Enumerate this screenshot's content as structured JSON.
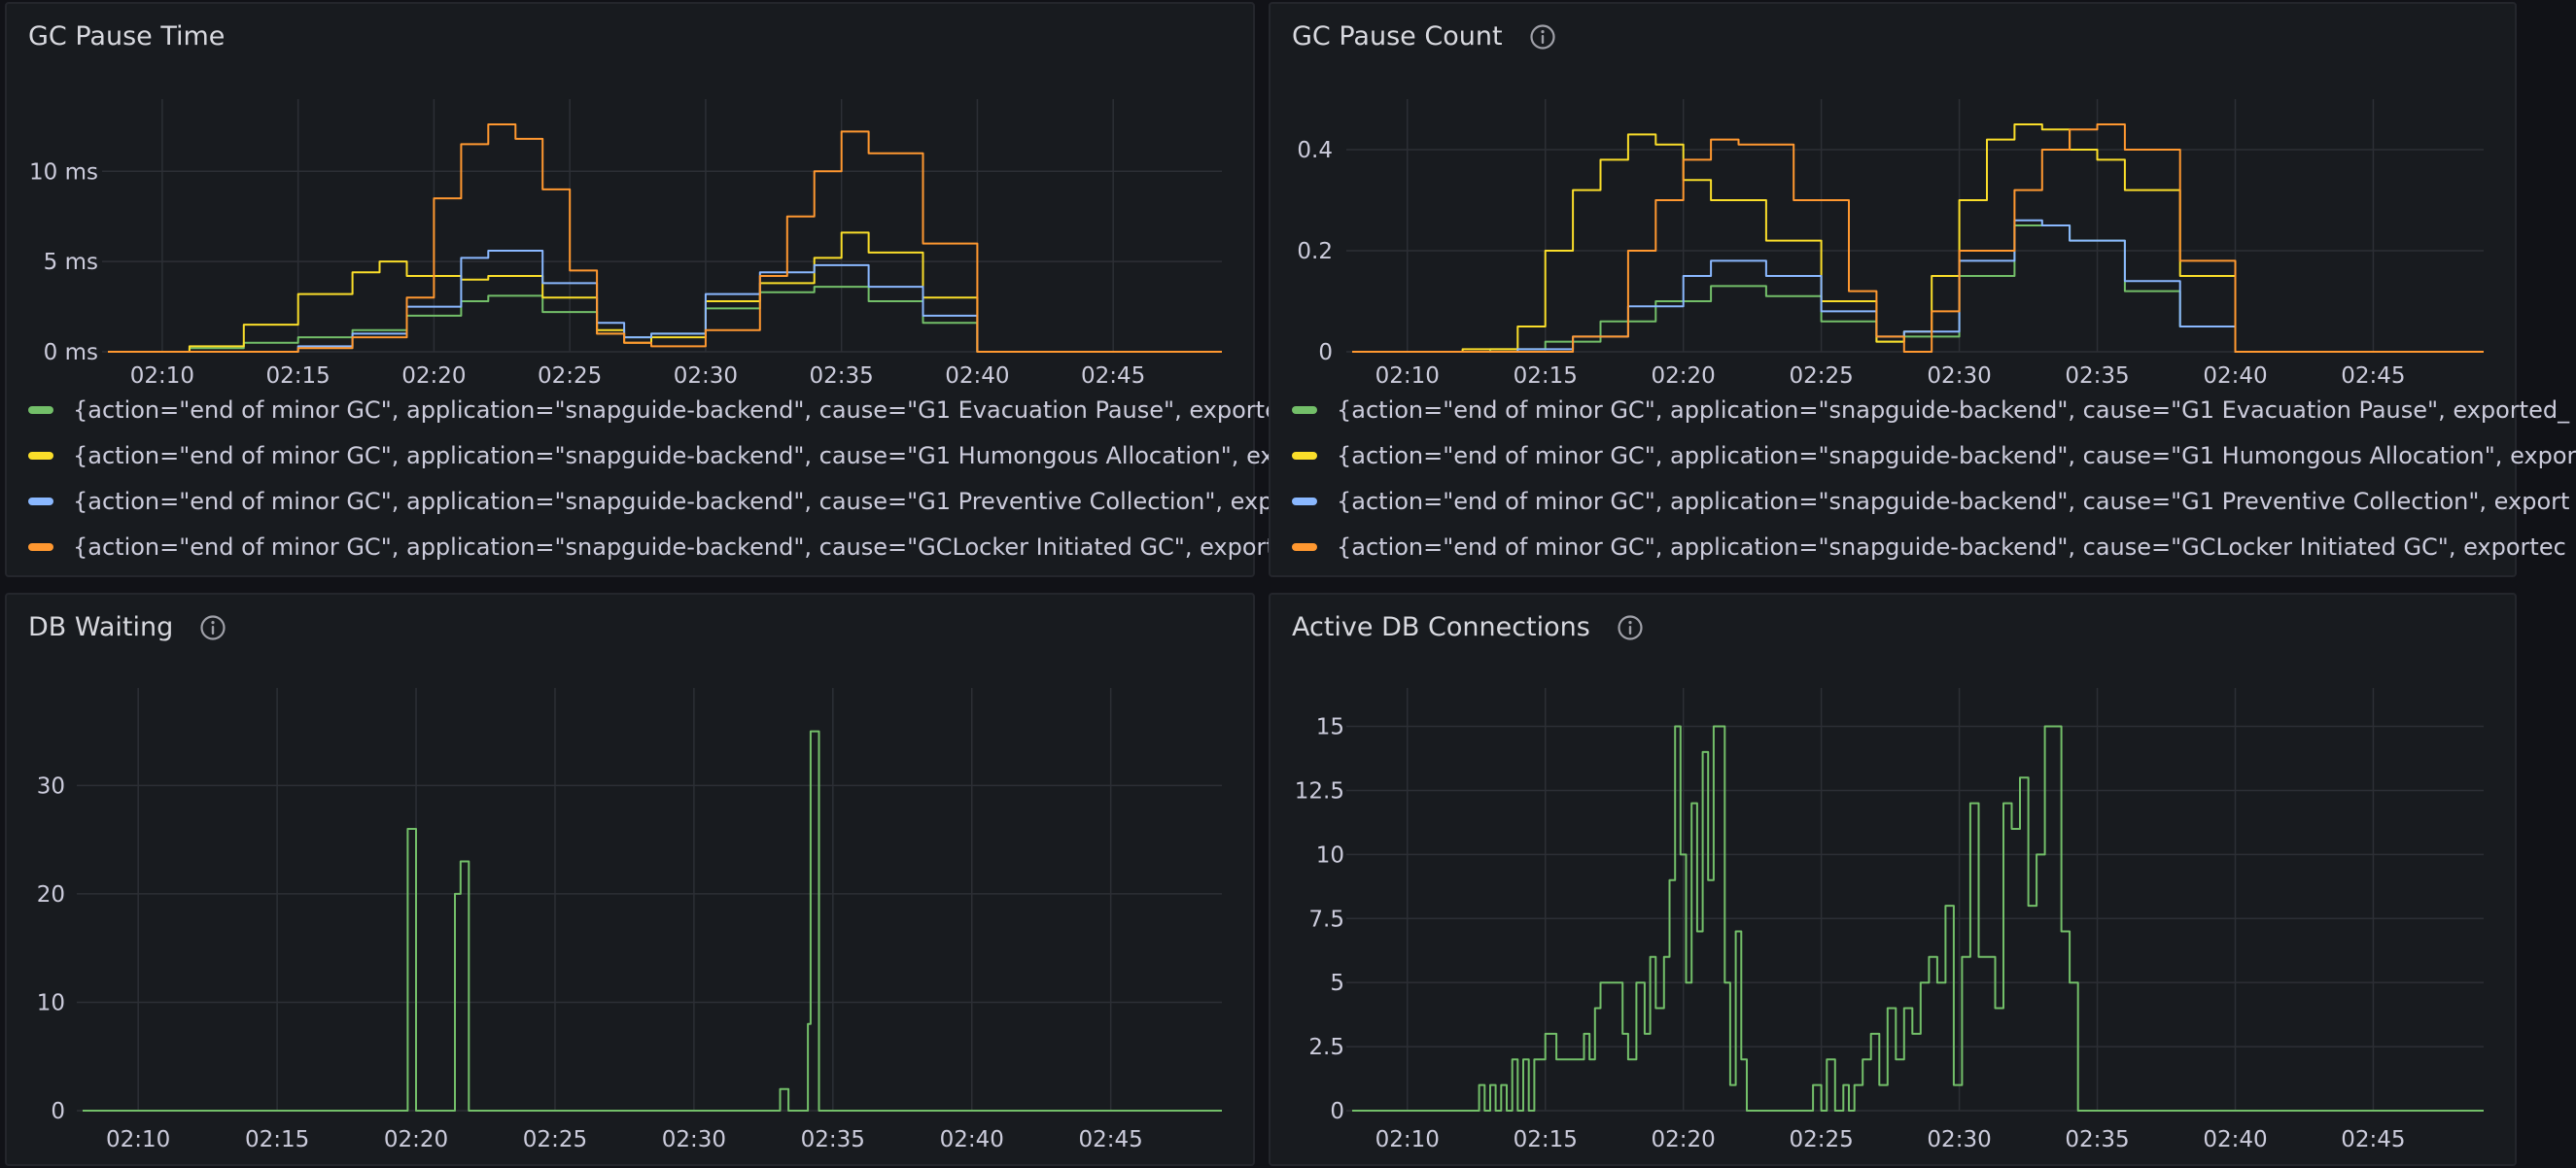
{
  "colors": {
    "background": "#111217",
    "panel": "#181b1f",
    "grid": "#2c2f35",
    "green": "#73bf69",
    "yellow": "#fade2a",
    "blue": "#8ab8ff",
    "orange": "#ff9830"
  },
  "x_tick_labels": [
    "02:10",
    "02:15",
    "02:20",
    "02:25",
    "02:30",
    "02:35",
    "02:40",
    "02:45"
  ],
  "legend": [
    {
      "color": "#73bf69",
      "label": "{action=\"end of minor GC\", application=\"snapguide-backend\", cause=\"G1 Evacuation Pause\", exported_"
    },
    {
      "color": "#fade2a",
      "label": "{action=\"end of minor GC\", application=\"snapguide-backend\", cause=\"G1 Humongous Allocation\", expor"
    },
    {
      "color": "#8ab8ff",
      "label": "{action=\"end of minor GC\", application=\"snapguide-backend\", cause=\"G1 Preventive Collection\", export"
    },
    {
      "color": "#ff9830",
      "label": "{action=\"end of minor GC\", application=\"snapguide-backend\", cause=\"GCLocker Initiated GC\", exportec"
    }
  ],
  "panels": {
    "gc_pause_time": {
      "title": "GC Pause Time"
    },
    "gc_pause_count": {
      "title": "GC Pause Count",
      "icon": "info-icon"
    },
    "db_waiting": {
      "title": "DB Waiting",
      "icon": "info-icon"
    },
    "active_db": {
      "title": "Active DB Connections",
      "icon": "info-icon"
    }
  },
  "chart_data": [
    {
      "type": "line",
      "title": "GC Pause Time",
      "x_range": [
        "02:08",
        "02:49"
      ],
      "y_ticks": [
        {
          "v": 0,
          "label": "0 ms"
        },
        {
          "v": 5,
          "label": "5 ms"
        },
        {
          "v": 10,
          "label": "10 ms"
        }
      ],
      "ylim": [
        0,
        14
      ],
      "grid": true,
      "legend_position": "bottom",
      "series": [
        {
          "color": "#73bf69",
          "x": [
            8,
            11,
            13,
            15,
            17,
            19,
            21,
            22,
            24,
            26,
            27,
            28,
            30,
            32,
            34,
            36,
            38,
            40,
            49
          ],
          "y": [
            0,
            0.2,
            0.5,
            0.8,
            1.2,
            2.0,
            2.8,
            3.1,
            2.2,
            1.0,
            0.8,
            1.0,
            2.4,
            3.3,
            3.6,
            2.8,
            1.6,
            0,
            0
          ]
        },
        {
          "color": "#fade2a",
          "x": [
            8,
            11,
            13,
            15,
            17,
            18,
            19,
            21,
            22,
            24,
            26,
            27,
            28,
            30,
            32,
            34,
            35,
            36,
            38,
            40,
            49
          ],
          "y": [
            0,
            0.3,
            1.5,
            3.2,
            4.4,
            5.0,
            4.2,
            4.0,
            4.2,
            3.0,
            1.2,
            0.5,
            0.8,
            2.8,
            3.8,
            5.2,
            6.6,
            5.5,
            3.0,
            0,
            0
          ]
        },
        {
          "color": "#8ab8ff",
          "x": [
            8,
            14,
            15,
            17,
            19,
            21,
            22,
            24,
            26,
            27,
            28,
            30,
            32,
            34,
            36,
            38,
            40,
            49
          ],
          "y": [
            0,
            0,
            0.3,
            1.0,
            2.5,
            5.2,
            5.6,
            3.8,
            1.6,
            0.8,
            1.0,
            3.2,
            4.4,
            4.8,
            3.6,
            2.0,
            0,
            0
          ]
        },
        {
          "color": "#ff9830",
          "x": [
            8,
            14,
            15,
            17,
            19,
            20,
            21,
            22,
            23,
            24,
            25,
            26,
            27,
            28,
            30,
            32,
            33,
            34,
            35,
            36,
            38,
            40,
            49
          ],
          "y": [
            0,
            0,
            0.2,
            0.8,
            3.0,
            8.5,
            11.5,
            12.6,
            11.8,
            9.0,
            4.5,
            1.0,
            0.5,
            0.3,
            1.2,
            4.2,
            7.5,
            10.0,
            12.2,
            11.0,
            6.0,
            0,
            0
          ]
        }
      ]
    },
    {
      "type": "line",
      "title": "GC Pause Count",
      "x_range": [
        "02:08",
        "02:49"
      ],
      "y_ticks": [
        {
          "v": 0,
          "label": "0"
        },
        {
          "v": 0.2,
          "label": "0.2"
        },
        {
          "v": 0.4,
          "label": "0.4"
        }
      ],
      "ylim": [
        0,
        0.5
      ],
      "grid": true,
      "legend_position": "bottom",
      "series": [
        {
          "color": "#73bf69",
          "x": [
            8,
            13,
            15,
            17,
            19,
            21,
            23,
            25,
            27,
            28,
            30,
            32,
            34,
            36,
            38,
            40,
            49
          ],
          "y": [
            0,
            0.005,
            0.02,
            0.06,
            0.1,
            0.13,
            0.11,
            0.06,
            0.02,
            0.03,
            0.15,
            0.25,
            0.22,
            0.12,
            0.05,
            0,
            0
          ]
        },
        {
          "color": "#fade2a",
          "x": [
            8,
            12,
            14,
            15,
            16,
            17,
            18,
            19,
            20,
            21,
            23,
            25,
            27,
            28,
            29,
            30,
            31,
            32,
            33,
            34,
            35,
            36,
            38,
            40,
            49
          ],
          "y": [
            0,
            0.005,
            0.05,
            0.2,
            0.32,
            0.38,
            0.43,
            0.41,
            0.34,
            0.3,
            0.22,
            0.1,
            0.02,
            0.04,
            0.15,
            0.3,
            0.42,
            0.45,
            0.44,
            0.4,
            0.38,
            0.32,
            0.15,
            0,
            0
          ]
        },
        {
          "color": "#8ab8ff",
          "x": [
            8,
            14,
            16,
            18,
            20,
            21,
            23,
            25,
            27,
            28,
            30,
            32,
            33,
            34,
            36,
            38,
            40,
            49
          ],
          "y": [
            0,
            0.005,
            0.03,
            0.09,
            0.15,
            0.18,
            0.15,
            0.08,
            0.03,
            0.04,
            0.18,
            0.26,
            0.25,
            0.22,
            0.14,
            0.05,
            0,
            0
          ]
        },
        {
          "color": "#ff9830",
          "x": [
            8,
            14,
            16,
            18,
            19,
            20,
            21,
            22,
            24,
            26,
            27,
            28,
            29,
            30,
            32,
            33,
            34,
            35,
            36,
            38,
            40,
            49
          ],
          "y": [
            0,
            0,
            0.03,
            0.2,
            0.3,
            0.38,
            0.42,
            0.41,
            0.3,
            0.12,
            0.03,
            0.0,
            0.08,
            0.2,
            0.32,
            0.4,
            0.44,
            0.45,
            0.4,
            0.18,
            0,
            0
          ]
        }
      ]
    },
    {
      "type": "line",
      "title": "DB Waiting",
      "x_range": [
        "02:08",
        "02:49"
      ],
      "y_ticks": [
        {
          "v": 0,
          "label": "0"
        },
        {
          "v": 10,
          "label": "10"
        },
        {
          "v": 20,
          "label": "20"
        },
        {
          "v": 30,
          "label": "30"
        }
      ],
      "ylim": [
        0,
        39
      ],
      "grid": true,
      "series": [
        {
          "color": "#73bf69",
          "x": [
            8,
            19.6,
            19.7,
            19.9,
            20.0,
            21.3,
            21.4,
            21.6,
            21.8,
            21.9,
            33.0,
            33.1,
            33.3,
            33.4,
            34.1,
            34.2,
            34.4,
            34.5,
            49
          ],
          "y": [
            0,
            0,
            26,
            26,
            0,
            0,
            20,
            23,
            23,
            0,
            0,
            2,
            2,
            0,
            8,
            35,
            35,
            0,
            0
          ]
        }
      ]
    },
    {
      "type": "line",
      "title": "Active DB Connections",
      "x_range": [
        "02:08",
        "02:49"
      ],
      "y_ticks": [
        {
          "v": 0,
          "label": "0"
        },
        {
          "v": 2.5,
          "label": "2.5"
        },
        {
          "v": 5,
          "label": "5"
        },
        {
          "v": 7.5,
          "label": "7.5"
        },
        {
          "v": 10,
          "label": "10"
        },
        {
          "v": 12.5,
          "label": "12.5"
        },
        {
          "v": 15,
          "label": "15"
        }
      ],
      "ylim": [
        0,
        16.5
      ],
      "grid": true,
      "series": [
        {
          "color": "#73bf69",
          "x": [
            8,
            12.5,
            12.6,
            12.8,
            13.0,
            13.2,
            13.4,
            13.6,
            13.8,
            14.0,
            14.2,
            14.4,
            14.6,
            14.8,
            15.0,
            15.2,
            15.4,
            15.6,
            16.0,
            16.4,
            16.6,
            16.8,
            17.0,
            17.4,
            17.8,
            18.0,
            18.3,
            18.6,
            18.8,
            19.0,
            19.3,
            19.5,
            19.7,
            19.9,
            20.1,
            20.3,
            20.5,
            20.7,
            20.9,
            21.1,
            21.3,
            21.5,
            21.7,
            21.9,
            22.1,
            22.3,
            22.5,
            22.7,
            24.5,
            24.7,
            25.0,
            25.2,
            25.5,
            25.8,
            26.0,
            26.2,
            26.5,
            26.8,
            27.1,
            27.4,
            27.7,
            28.0,
            28.3,
            28.6,
            28.9,
            29.2,
            29.5,
            29.8,
            30.1,
            30.4,
            30.7,
            31.0,
            31.3,
            31.6,
            31.9,
            32.2,
            32.5,
            32.8,
            33.1,
            33.4,
            33.7,
            34.0,
            34.3,
            34.6,
            34.9,
            35.1,
            35.3,
            49
          ],
          "y": [
            0,
            0,
            1,
            0,
            1,
            0,
            1,
            0,
            2,
            0,
            2,
            0,
            2,
            2,
            3,
            3,
            2,
            2,
            2,
            3,
            2,
            4,
            5,
            5,
            3,
            2,
            5,
            3,
            6,
            4,
            6,
            9,
            15,
            10,
            5,
            12,
            7,
            14,
            9,
            15,
            15,
            5,
            1,
            7,
            2,
            0,
            0,
            0,
            0,
            1,
            0,
            2,
            0,
            1,
            0,
            1,
            2,
            3,
            1,
            4,
            2,
            4,
            3,
            5,
            6,
            5,
            8,
            1,
            6,
            12,
            6,
            6,
            4,
            12,
            11,
            13,
            8,
            10,
            15,
            15,
            7,
            5,
            0,
            0,
            0,
            0,
            0,
            0
          ]
        }
      ]
    }
  ]
}
